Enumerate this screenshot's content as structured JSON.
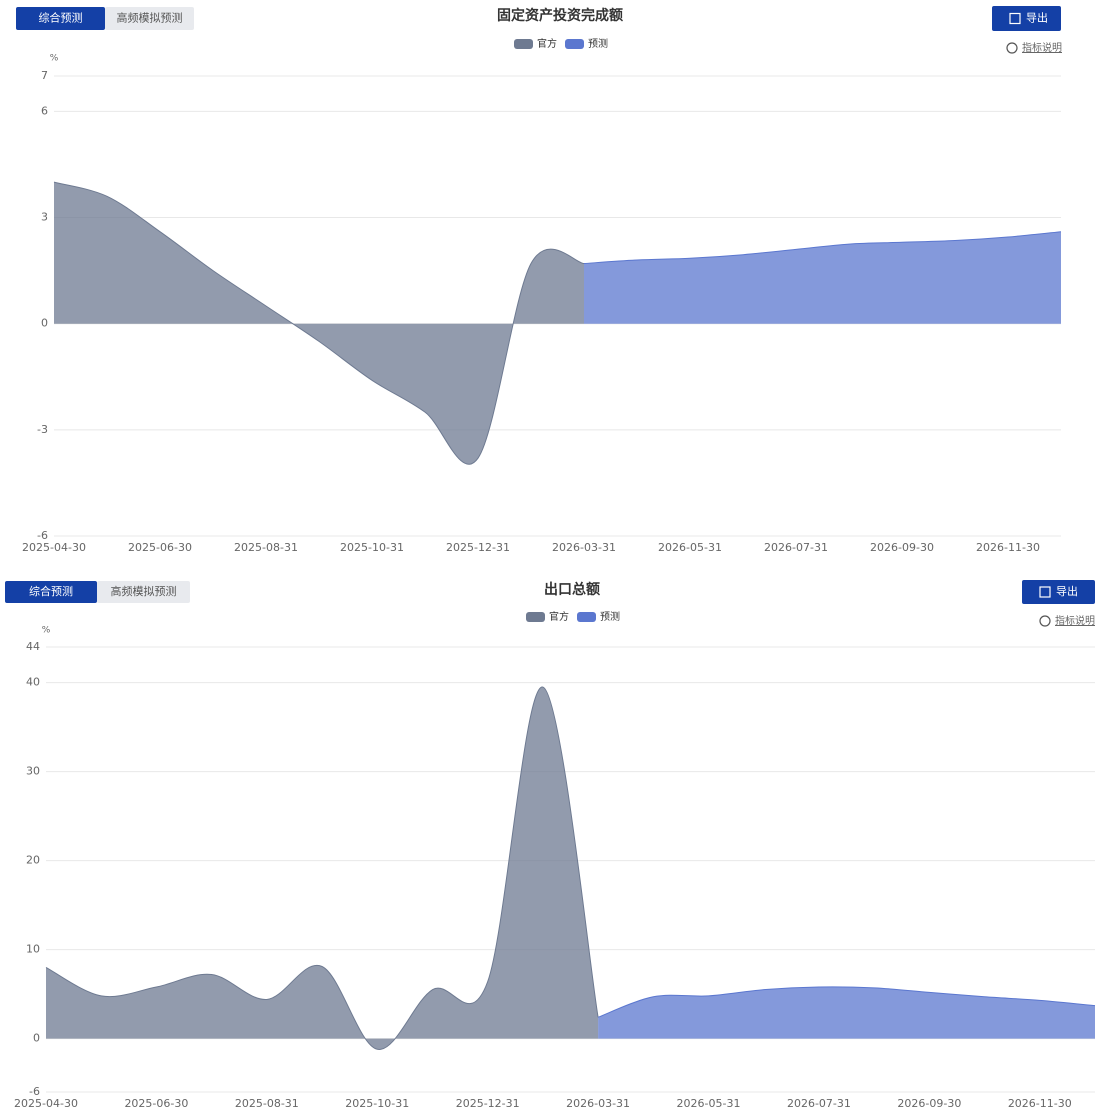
{
  "chart_data": [
    {
      "type": "area",
      "title": "固定资产投资完成额",
      "tabs": [
        "综合预测",
        "高频模拟预测"
      ],
      "export": "导出",
      "note": "指标说明",
      "y_unit": "%",
      "categories": [
        "2025-04-30",
        null,
        "2025-06-30",
        null,
        "2025-08-31",
        null,
        "2025-10-31",
        null,
        "2025-12-31",
        null,
        "2026-03-31",
        null,
        "2026-05-31",
        null,
        "2026-07-31",
        null,
        "2026-09-30",
        null,
        "2026-11-30",
        null
      ],
      "series": [
        {
          "name": "官方",
          "color": "#6e7a91",
          "values": [
            4.0,
            3.6,
            2.6,
            1.5,
            0.5,
            -0.5,
            -1.6,
            -2.5,
            -3.8,
            1.7,
            1.7,
            null,
            null,
            null,
            null,
            null,
            null,
            null,
            null,
            null
          ]
        },
        {
          "name": "预测",
          "color": "#5b77cf",
          "values": [
            null,
            null,
            null,
            null,
            null,
            null,
            null,
            null,
            null,
            null,
            1.7,
            1.8,
            1.85,
            1.95,
            2.1,
            2.25,
            2.3,
            2.35,
            2.45,
            2.6
          ]
        }
      ],
      "ylim": [
        -6,
        7
      ],
      "yticks": [
        -6,
        -3,
        0,
        3,
        6,
        7
      ],
      "grid": true,
      "legend": "top"
    },
    {
      "type": "area",
      "title": "出口总额",
      "tabs": [
        "综合预测",
        "高频模拟预测"
      ],
      "export": "导出",
      "note": "指标说明",
      "y_unit": "%",
      "categories": [
        "2025-04-30",
        null,
        "2025-06-30",
        null,
        "2025-08-31",
        null,
        "2025-10-31",
        null,
        "2025-12-31",
        null,
        "2026-03-31",
        null,
        "2026-05-31",
        null,
        "2026-07-31",
        null,
        "2026-09-30",
        null,
        "2026-11-30",
        null
      ],
      "series": [
        {
          "name": "官方",
          "color": "#6e7a91",
          "values": [
            8.0,
            4.8,
            5.8,
            7.2,
            4.4,
            8.1,
            -1.2,
            5.5,
            6.4,
            39.5,
            2.4,
            null,
            null,
            null,
            null,
            null,
            null,
            null,
            null,
            null
          ]
        },
        {
          "name": "预测",
          "color": "#5b77cf",
          "values": [
            null,
            null,
            null,
            null,
            null,
            null,
            null,
            null,
            null,
            null,
            2.4,
            4.7,
            4.8,
            5.5,
            5.8,
            5.7,
            5.2,
            4.7,
            4.3,
            3.7
          ]
        }
      ],
      "ylim": [
        -6,
        44
      ],
      "yticks": [
        -6,
        0,
        10,
        20,
        30,
        40,
        44
      ],
      "grid": true,
      "legend": "top"
    }
  ]
}
